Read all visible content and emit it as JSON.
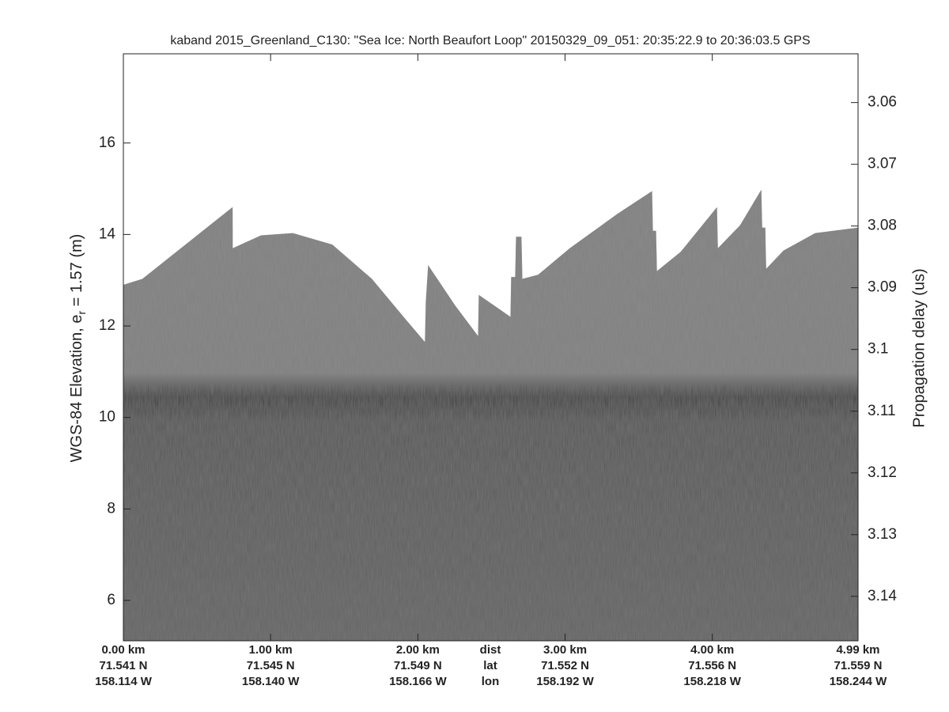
{
  "chart_data": {
    "type": "echogram",
    "title": "kaband 2015_Greenland_C130: \"Sea Ice: North Beaufort Loop\"  20150329_09_051: 20:35:22.9 to 20:36:03.5 GPS",
    "ylabel": "WGS-84 Elevation, e",
    "ylabel_sub": "r",
    "ylabel_rest": " = 1.57 (m)",
    "y2label": "Propagation delay (us)",
    "row_labels": [
      "dist",
      "lat",
      "lon"
    ],
    "xlim": [
      0,
      4.99
    ],
    "xticks": [
      {
        "value": 0,
        "label": "0.00 km"
      },
      {
        "value": 1,
        "label": "1.00 km"
      },
      {
        "value": 2,
        "label": "2.00 km"
      },
      {
        "value": 3,
        "label": "3.00 km"
      },
      {
        "value": 4,
        "label": "4.00 km"
      },
      {
        "value": 4.99,
        "label": "4.99 km"
      }
    ],
    "lat_labels": [
      "71.541 N",
      "71.545 N",
      "71.549 N",
      "71.552 N",
      "71.556 N",
      "71.559 N"
    ],
    "lon_labels": [
      "158.114 W",
      "158.140 W",
      "158.166 W",
      "158.192 W",
      "158.218 W",
      "158.244 W"
    ],
    "ylim": [
      5.117,
      17.95
    ],
    "yticks": [
      6,
      8,
      10,
      12,
      14,
      16
    ],
    "y2lim": [
      3.1472,
      3.0521
    ],
    "y2ticks": [
      3.06,
      3.07,
      3.08,
      3.09,
      {
        "value": 3.1,
        "label": "3.1"
      },
      3.11,
      3.12,
      3.13,
      3.14
    ],
    "series": [
      {
        "name": "surface",
        "color": "#8a8a8a",
        "x": [
          0,
          0.129,
          0.742,
          0.743,
          0.935,
          1.151,
          1.419,
          1.688,
          1.903,
          2.048,
          2.054,
          2.07,
          2.253,
          2.409,
          2.414,
          2.629,
          2.634,
          2.661,
          2.667,
          2.704,
          2.71,
          2.817,
          3.032,
          3.355,
          3.591,
          3.597,
          3.618,
          3.624,
          3.785,
          4.032,
          4.038,
          4.188,
          4.333,
          4.339,
          4.36,
          4.366,
          4.484,
          4.699,
          4.99
        ],
        "values": [
          12.9,
          13.03,
          14.6,
          13.7,
          13.98,
          14.03,
          13.78,
          13.03,
          12.2,
          11.65,
          12.53,
          13.33,
          12.45,
          11.78,
          12.68,
          12.2,
          13.07,
          13.07,
          13.95,
          13.95,
          13.03,
          13.12,
          13.7,
          14.45,
          14.95,
          14.08,
          14.08,
          13.2,
          13.62,
          14.6,
          13.7,
          14.2,
          14.98,
          14.15,
          14.15,
          13.25,
          13.65,
          14.03,
          14.15
        ]
      }
    ]
  }
}
